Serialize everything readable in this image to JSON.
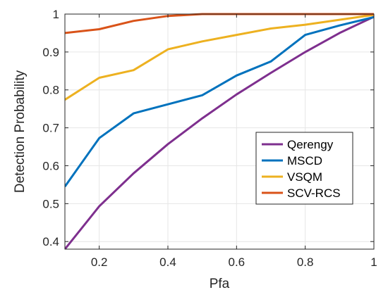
{
  "chart_data": {
    "type": "line",
    "title": "",
    "xlabel": "Pfa",
    "ylabel": "Detection Probability",
    "xlim": [
      0.1,
      1
    ],
    "ylim": [
      0.38,
      1
    ],
    "xticks": [
      0.2,
      0.4,
      0.6,
      0.8,
      1
    ],
    "xtick_labels": [
      "0.2",
      "0.4",
      "0.6",
      "0.8",
      "1"
    ],
    "yticks": [
      0.4,
      0.5,
      0.6,
      0.7,
      0.8,
      0.9,
      1
    ],
    "ytick_labels": [
      "0.4",
      "0.5",
      "0.6",
      "0.7",
      "0.8",
      "0.9",
      "1"
    ],
    "grid": true,
    "legend_position": "lower-right",
    "x": [
      0.1,
      0.2,
      0.3,
      0.4,
      0.5,
      0.6,
      0.7,
      0.8,
      0.9,
      1.0
    ],
    "series": [
      {
        "name": "Qerengy",
        "color": "#7E2F8E",
        "values": [
          0.38,
          0.493,
          0.58,
          0.657,
          0.725,
          0.788,
          0.845,
          0.9,
          0.95,
          0.993
        ]
      },
      {
        "name": "MSCD",
        "color": "#0072BD",
        "values": [
          0.545,
          0.673,
          0.738,
          0.762,
          0.786,
          0.838,
          0.875,
          0.945,
          0.97,
          0.992
        ]
      },
      {
        "name": "VSQM",
        "color": "#EDB120",
        "values": [
          0.774,
          0.832,
          0.852,
          0.907,
          0.928,
          0.945,
          0.962,
          0.972,
          0.985,
          0.998
        ]
      },
      {
        "name": "SCV-RCS",
        "color": "#D95319",
        "values": [
          0.95,
          0.96,
          0.982,
          0.995,
          1.0,
          1.0,
          1.0,
          1.0,
          1.0,
          1.0
        ]
      }
    ]
  }
}
